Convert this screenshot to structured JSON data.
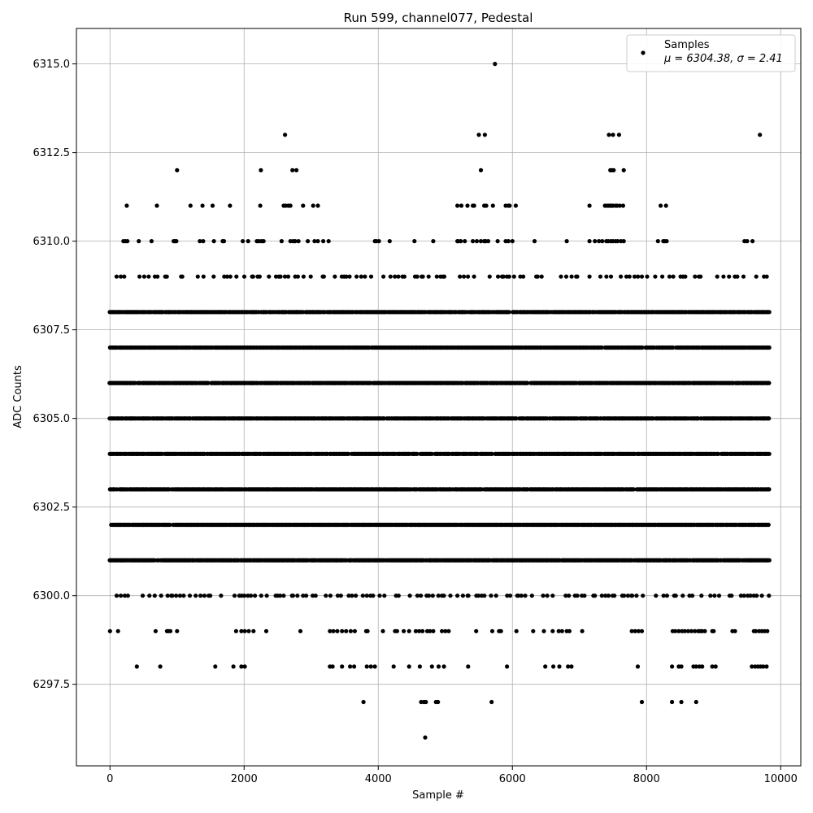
{
  "chart_data": {
    "type": "scatter",
    "title": "Run 599, channel077, Pedestal",
    "xlabel": "Sample #",
    "ylabel": "ADC Counts",
    "xlim": [
      -500,
      10300
    ],
    "ylim": [
      6295.2,
      6316.0
    ],
    "xticks": [
      0,
      2000,
      4000,
      6000,
      8000,
      10000
    ],
    "yticks": [
      6297.5,
      6300.0,
      6302.5,
      6305.0,
      6307.5,
      6310.0,
      6312.5,
      6315.0
    ],
    "ytick_labels": [
      "6297.5",
      "6300.0",
      "6302.5",
      "6305.0",
      "6307.5",
      "6310.0",
      "6312.5",
      "6315.0"
    ],
    "grid": true,
    "marker_color": "#000000",
    "legend": {
      "placement": "top-right",
      "label": "Samples",
      "stat_text": "μ = 6304.38, σ = 2.41"
    },
    "series": [
      {
        "name": "Samples",
        "n_samples": 9830,
        "mean": 6304.38,
        "std": 2.41,
        "levels": [
          {
            "y": 6303,
            "x": "dense",
            "x_range": [
              0,
              9830
            ]
          },
          {
            "y": 6304,
            "x": "dense",
            "x_range": [
              0,
              9830
            ]
          },
          {
            "y": 6305,
            "x": "dense",
            "x_range": [
              0,
              9830
            ]
          },
          {
            "y": 6306,
            "x": "dense",
            "x_range": [
              0,
              9830
            ]
          },
          {
            "y": 6307,
            "x": "dense",
            "x_range": [
              0,
              9830
            ]
          },
          {
            "y": 6302,
            "x": "dense",
            "x_range": [
              20,
              9830
            ]
          },
          {
            "y": 6301,
            "x": "dense",
            "x_range": [
              0,
              9830
            ]
          },
          {
            "y": 6308,
            "x": "dense",
            "x_range": [
              0,
              9830
            ]
          },
          {
            "y": 6309,
            "x": "sparse",
            "x_range": [
              80,
              9830
            ]
          },
          {
            "y": 6300,
            "x": "sparse",
            "x_range": [
              120,
              9830
            ]
          },
          {
            "y": 6315,
            "x": [
              5740
            ]
          },
          {
            "y": 6313,
            "x": [
              2610,
              5500,
              5590,
              7440,
              7500,
              7590,
              9690
            ]
          },
          {
            "y": 6312,
            "x": [
              1000,
              2250,
              2720,
              2780,
              5530,
              7460,
              7480,
              7510,
              7660
            ]
          },
          {
            "y": 6311,
            "x": [
              250,
              700,
              1200,
              1380,
              1530,
              1790,
              2240,
              2590,
              2620,
              2660,
              2690,
              2880,
              3030,
              3100,
              5180,
              5240,
              5330,
              5410,
              5430,
              5580,
              5610,
              5710,
              5900,
              5940,
              5960,
              6050,
              7150,
              7380,
              7410,
              7440,
              7460,
              7480,
              7500,
              7540,
              7560,
              7600,
              7650,
              8210,
              8290
            ]
          },
          {
            "y": 6310,
            "x": [
              200,
              230,
              260,
              430,
              620,
              950,
              970,
              990,
              1340,
              1390,
              1550,
              1680,
              1700,
              1980,
              2060,
              2190,
              2220,
              2260,
              2290,
              2560,
              2690,
              2730,
              2760,
              2810,
              2950,
              3050,
              3100,
              3180,
              3260,
              3950,
              3970,
              4010,
              4170,
              4540,
              4820,
              5180,
              5190,
              5230,
              5290,
              5410,
              5470,
              5530,
              5580,
              5600,
              5640,
              5780,
              5900,
              5940,
              6000,
              6330,
              6810,
              7150,
              7230,
              7290,
              7340,
              7400,
              7430,
              7470,
              7500,
              7540,
              7570,
              7620,
              7660,
              8170,
              8250,
              8270,
              8300,
              9460,
              9500,
              9580
            ]
          },
          {
            "y": 6299,
            "x": [
              0,
              120,
              680,
              850,
              870,
              900,
              1000,
              1880,
              1960,
              2010,
              2070,
              2140,
              2330,
              2840,
              3280,
              3330,
              3390,
              3460,
              3520,
              3590,
              3650,
              3820,
              3840,
              4070,
              4250,
              4280,
              4380,
              4460,
              4560,
              4610,
              4660,
              4730,
              4770,
              4820,
              4950,
              5000,
              5050,
              5460,
              5700,
              5800,
              5830,
              6060,
              6310,
              6470,
              6600,
              6690,
              6740,
              6810,
              6850,
              7040,
              7780,
              7830,
              7880,
              7930,
              8390,
              8430,
              8480,
              8530,
              8570,
              8620,
              8670,
              8720,
              8770,
              8800,
              8830,
              8870,
              8980,
              9000,
              9280,
              9320,
              9600,
              9630,
              9680,
              9720,
              9760,
              9800
            ]
          },
          {
            "y": 6298,
            "x": [
              400,
              750,
              1570,
              1840,
              1960,
              2010,
              3280,
              3320,
              3460,
              3580,
              3640,
              3830,
              3890,
              3950,
              4230,
              4460,
              4620,
              4800,
              4900,
              4980,
              5340,
              5920,
              6490,
              6610,
              6700,
              6830,
              6880,
              7870,
              8380,
              8480,
              8520,
              8700,
              8740,
              8790,
              8830,
              8980,
              9030,
              9570,
              9620,
              9660,
              9700,
              9740,
              9790
            ]
          },
          {
            "y": 6297,
            "x": [
              3780,
              4640,
              4680,
              4710,
              4860,
              4890,
              5690,
              7930,
              8380,
              8520,
              8740
            ]
          },
          {
            "y": 6296,
            "x": [
              4700
            ]
          }
        ]
      }
    ]
  }
}
